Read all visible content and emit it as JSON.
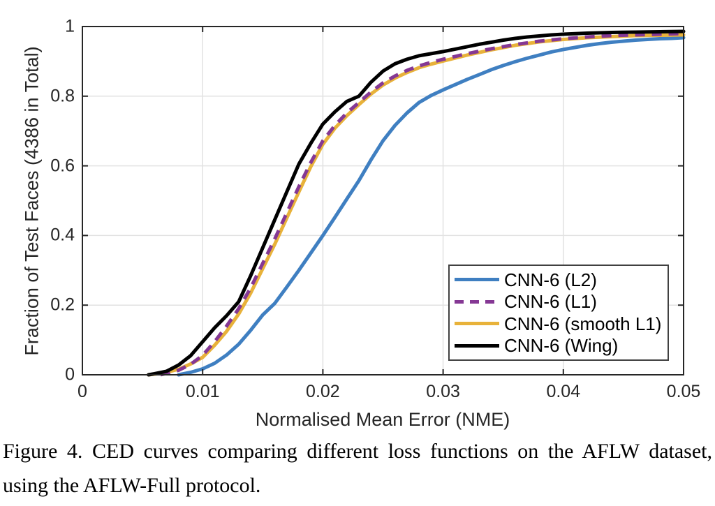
{
  "figure": {
    "xlabel": "Normalised Mean Error (NME)",
    "ylabel": "Fraction of Test Faces (4386 in Total)",
    "caption": "Figure 4. CED curves comparing different loss functions on the AFLW dataset, using the AFLW-Full protocol."
  },
  "colors": {
    "axis": "#262626",
    "grid": "#e2e2e2",
    "background": "#ffffff"
  },
  "chart_data": {
    "type": "line",
    "title": "",
    "xlabel": "Normalised Mean Error (NME)",
    "ylabel": "Fraction of Test Faces (4386 in Total)",
    "xlim": [
      0,
      0.05
    ],
    "ylim": [
      0,
      1
    ],
    "xticks": [
      0,
      0.01,
      0.02,
      0.03,
      0.04,
      0.05
    ],
    "xtick_labels": [
      "0",
      "0.01",
      "0.02",
      "0.03",
      "0.04",
      "0.05"
    ],
    "yticks": [
      0,
      0.2,
      0.4,
      0.6,
      0.8,
      1
    ],
    "ytick_labels": [
      "0",
      "0.2",
      "0.4",
      "0.6",
      "0.8",
      "1"
    ],
    "grid": true,
    "legend_position": "lower-right-inside",
    "series": [
      {
        "label": "CNN-6 (L2)",
        "color": "#3f7fc1",
        "dash": false,
        "points": [
          [
            0.008,
            0.0
          ],
          [
            0.009,
            0.007
          ],
          [
            0.01,
            0.017
          ],
          [
            0.011,
            0.033
          ],
          [
            0.012,
            0.057
          ],
          [
            0.013,
            0.088
          ],
          [
            0.014,
            0.128
          ],
          [
            0.015,
            0.172
          ],
          [
            0.016,
            0.205
          ],
          [
            0.017,
            0.252
          ],
          [
            0.018,
            0.3
          ],
          [
            0.019,
            0.35
          ],
          [
            0.02,
            0.4
          ],
          [
            0.021,
            0.452
          ],
          [
            0.022,
            0.505
          ],
          [
            0.023,
            0.558
          ],
          [
            0.024,
            0.617
          ],
          [
            0.025,
            0.672
          ],
          [
            0.026,
            0.716
          ],
          [
            0.027,
            0.752
          ],
          [
            0.028,
            0.782
          ],
          [
            0.029,
            0.802
          ],
          [
            0.03,
            0.818
          ],
          [
            0.031,
            0.833
          ],
          [
            0.032,
            0.848
          ],
          [
            0.033,
            0.862
          ],
          [
            0.034,
            0.876
          ],
          [
            0.035,
            0.888
          ],
          [
            0.036,
            0.899
          ],
          [
            0.037,
            0.909
          ],
          [
            0.038,
            0.918
          ],
          [
            0.039,
            0.927
          ],
          [
            0.04,
            0.934
          ],
          [
            0.041,
            0.94
          ],
          [
            0.042,
            0.946
          ],
          [
            0.043,
            0.951
          ],
          [
            0.044,
            0.955
          ],
          [
            0.045,
            0.958
          ],
          [
            0.046,
            0.961
          ],
          [
            0.047,
            0.963
          ],
          [
            0.048,
            0.965
          ],
          [
            0.049,
            0.966
          ],
          [
            0.05,
            0.968
          ]
        ]
      },
      {
        "label": "CNN-6 (L1)",
        "color": "#853894",
        "dash": true,
        "points": [
          [
            0.0065,
            0.0
          ],
          [
            0.007,
            0.004
          ],
          [
            0.008,
            0.013
          ],
          [
            0.009,
            0.03
          ],
          [
            0.01,
            0.056
          ],
          [
            0.011,
            0.095
          ],
          [
            0.012,
            0.14
          ],
          [
            0.013,
            0.19
          ],
          [
            0.014,
            0.25
          ],
          [
            0.015,
            0.32
          ],
          [
            0.016,
            0.39
          ],
          [
            0.017,
            0.465
          ],
          [
            0.018,
            0.54
          ],
          [
            0.019,
            0.61
          ],
          [
            0.02,
            0.672
          ],
          [
            0.021,
            0.716
          ],
          [
            0.022,
            0.752
          ],
          [
            0.023,
            0.782
          ],
          [
            0.024,
            0.812
          ],
          [
            0.025,
            0.838
          ],
          [
            0.026,
            0.858
          ],
          [
            0.027,
            0.874
          ],
          [
            0.028,
            0.887
          ],
          [
            0.029,
            0.897
          ],
          [
            0.03,
            0.906
          ],
          [
            0.032,
            0.922
          ],
          [
            0.034,
            0.936
          ],
          [
            0.036,
            0.948
          ],
          [
            0.038,
            0.958
          ],
          [
            0.04,
            0.965
          ],
          [
            0.042,
            0.97
          ],
          [
            0.044,
            0.974
          ],
          [
            0.046,
            0.976
          ],
          [
            0.048,
            0.978
          ],
          [
            0.05,
            0.98
          ]
        ]
      },
      {
        "label": "CNN-6 (smooth L1)",
        "color": "#e8b23a",
        "dash": false,
        "points": [
          [
            0.0055,
            0.0
          ],
          [
            0.006,
            0.002
          ],
          [
            0.007,
            0.007
          ],
          [
            0.008,
            0.016
          ],
          [
            0.009,
            0.031
          ],
          [
            0.01,
            0.05
          ],
          [
            0.011,
            0.085
          ],
          [
            0.012,
            0.125
          ],
          [
            0.013,
            0.175
          ],
          [
            0.014,
            0.235
          ],
          [
            0.015,
            0.305
          ],
          [
            0.016,
            0.375
          ],
          [
            0.017,
            0.45
          ],
          [
            0.018,
            0.525
          ],
          [
            0.019,
            0.598
          ],
          [
            0.02,
            0.662
          ],
          [
            0.021,
            0.708
          ],
          [
            0.022,
            0.744
          ],
          [
            0.023,
            0.776
          ],
          [
            0.024,
            0.806
          ],
          [
            0.025,
            0.832
          ],
          [
            0.026,
            0.852
          ],
          [
            0.027,
            0.868
          ],
          [
            0.028,
            0.882
          ],
          [
            0.029,
            0.892
          ],
          [
            0.03,
            0.901
          ],
          [
            0.032,
            0.918
          ],
          [
            0.034,
            0.933
          ],
          [
            0.036,
            0.946
          ],
          [
            0.038,
            0.956
          ],
          [
            0.04,
            0.963
          ],
          [
            0.042,
            0.968
          ],
          [
            0.044,
            0.971
          ],
          [
            0.046,
            0.974
          ],
          [
            0.048,
            0.975
          ],
          [
            0.05,
            0.976
          ]
        ]
      },
      {
        "label": "CNN-6 (Wing)",
        "color": "#000000",
        "dash": false,
        "points": [
          [
            0.0055,
            0.0
          ],
          [
            0.006,
            0.003
          ],
          [
            0.007,
            0.01
          ],
          [
            0.008,
            0.028
          ],
          [
            0.009,
            0.055
          ],
          [
            0.01,
            0.095
          ],
          [
            0.011,
            0.135
          ],
          [
            0.012,
            0.17
          ],
          [
            0.013,
            0.21
          ],
          [
            0.014,
            0.285
          ],
          [
            0.015,
            0.365
          ],
          [
            0.016,
            0.445
          ],
          [
            0.017,
            0.525
          ],
          [
            0.018,
            0.605
          ],
          [
            0.019,
            0.665
          ],
          [
            0.02,
            0.72
          ],
          [
            0.021,
            0.755
          ],
          [
            0.022,
            0.785
          ],
          [
            0.023,
            0.8
          ],
          [
            0.024,
            0.84
          ],
          [
            0.025,
            0.872
          ],
          [
            0.026,
            0.893
          ],
          [
            0.027,
            0.906
          ],
          [
            0.028,
            0.916
          ],
          [
            0.029,
            0.922
          ],
          [
            0.03,
            0.928
          ],
          [
            0.031,
            0.935
          ],
          [
            0.032,
            0.942
          ],
          [
            0.033,
            0.949
          ],
          [
            0.034,
            0.955
          ],
          [
            0.035,
            0.961
          ],
          [
            0.036,
            0.966
          ],
          [
            0.037,
            0.97
          ],
          [
            0.038,
            0.973
          ],
          [
            0.039,
            0.976
          ],
          [
            0.04,
            0.978
          ],
          [
            0.042,
            0.981
          ],
          [
            0.044,
            0.983
          ],
          [
            0.046,
            0.984
          ],
          [
            0.048,
            0.985
          ],
          [
            0.05,
            0.986
          ]
        ]
      }
    ]
  }
}
